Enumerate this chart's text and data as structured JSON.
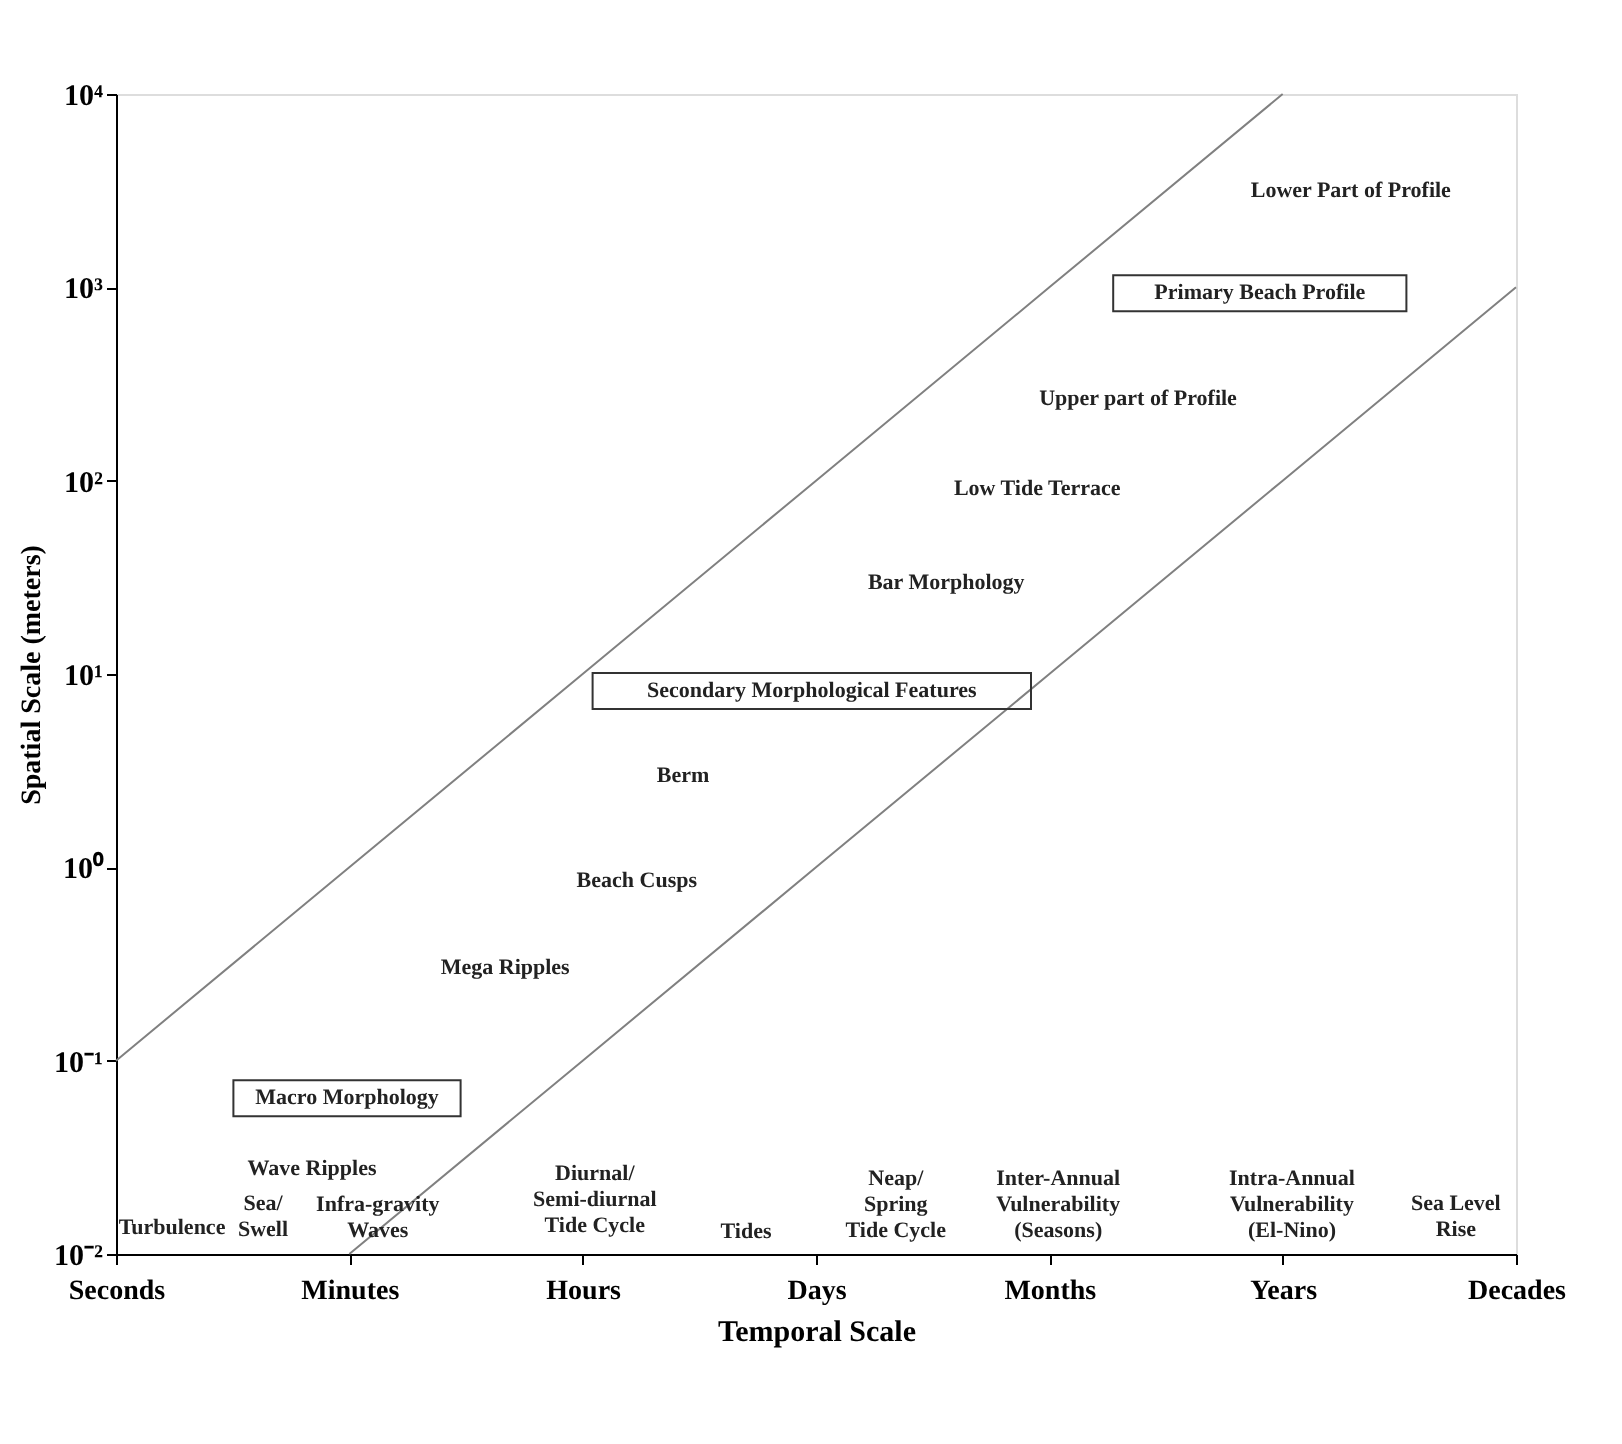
{
  "chart_data": {
    "type": "line",
    "xlabel": "Temporal Scale",
    "ylabel": "Spatial Scale (meters)",
    "categories": [
      "Seconds",
      "Minutes",
      "Hours",
      "Days",
      "Months",
      "Years",
      "Decades"
    ],
    "ylim": [
      0.01,
      10000
    ],
    "yticks": [
      {
        "value": 0.01,
        "label": "10⁻²"
      },
      {
        "value": 0.1,
        "label": "10⁻¹"
      },
      {
        "value": 1,
        "label": "10⁰"
      },
      {
        "value": 10,
        "label": "10¹"
      },
      {
        "value": 100,
        "label": "10²"
      },
      {
        "value": 1000,
        "label": "10³"
      },
      {
        "value": 10000,
        "label": "10⁴"
      }
    ],
    "log": "y",
    "grid": false,
    "marker": "none",
    "line_style": "solid",
    "series": [
      {
        "color": "#808080",
        "values": [
          0.1,
          1,
          10,
          100,
          1000,
          10000,
          null
        ]
      },
      {
        "color": "#808080",
        "values": [
          null,
          0.01,
          0.1,
          1,
          10,
          100,
          1000
        ]
      }
    ],
    "annotations": [
      "Lower Part of Profile",
      "Primary Beach Profile",
      "Upper part of Profile",
      "Low Tide Terrace",
      "Bar Morphology",
      "Secondary Morphological Features",
      "Berm",
      "Beach Cusps",
      "Mega Ripples",
      "Macro Morphology",
      "Wave Ripples",
      "Turbulence",
      "Sea/\nSwell",
      "Infra-gravity\nWaves",
      "Diurnal/\nSemi-diurnal\nTide Cycle",
      "Tides",
      "Neap/\nSpring\nTide Cycle",
      "Inter-Annual\nVulnerability\n(Seasons)",
      "Intra-Annual\nVulnerability\n(El-Nino)",
      "Sea Level\nRise"
    ]
  }
}
